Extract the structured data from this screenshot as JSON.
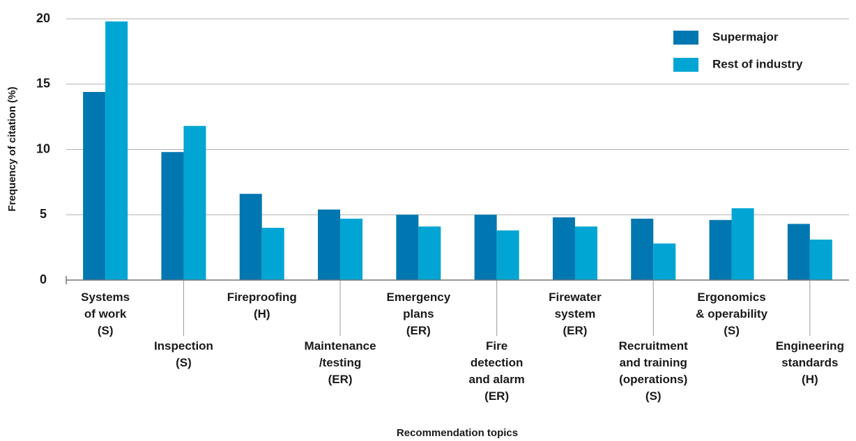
{
  "chart_data": {
    "type": "bar",
    "y_label": "Frequency of citation  (%)",
    "x_label": "Recommendation topics",
    "categories": [
      [
        "Systems",
        "of work",
        "(S)"
      ],
      [
        "Inspection",
        "(S)"
      ],
      [
        "Fireproofing",
        "(H)"
      ],
      [
        "Maintenance",
        "/testing",
        "(ER)"
      ],
      [
        "Emergency",
        "plans",
        "(ER)"
      ],
      [
        "Fire",
        "detection",
        "and alarm",
        "(ER)"
      ],
      [
        "Firewater",
        "system",
        "(ER)"
      ],
      [
        "Recruitment",
        "and training",
        "(operations)",
        "(S)"
      ],
      [
        "Ergonomics",
        "& operability",
        "(S)"
      ],
      [
        "Engineering",
        "standards",
        "(H)"
      ]
    ],
    "series": [
      {
        "name": "Supermajor",
        "color": "#0077b0",
        "values": [
          14.4,
          9.8,
          6.6,
          5.4,
          5.0,
          5.0,
          4.8,
          4.7,
          4.6,
          4.3
        ]
      },
      {
        "name": "Rest of industry",
        "color": "#00a5d3",
        "values": [
          19.8,
          11.8,
          4.0,
          4.7,
          4.1,
          3.8,
          4.1,
          2.8,
          5.5,
          3.1
        ]
      }
    ],
    "ylim": [
      0,
      20
    ],
    "yticks": [
      0,
      5,
      10,
      15,
      20
    ],
    "grid": true,
    "legend": "top-right"
  }
}
